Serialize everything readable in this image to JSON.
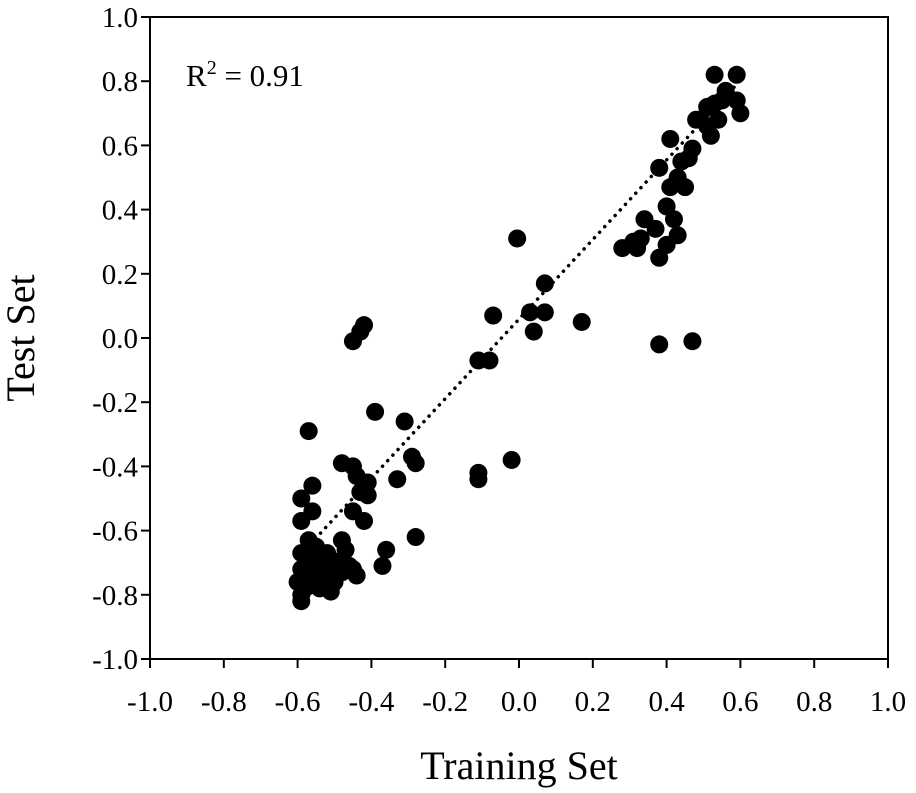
{
  "chart_data": {
    "type": "scatter",
    "title": "",
    "xlabel": "Training Set",
    "ylabel": "Test Set",
    "xlim": [
      -1.0,
      1.0
    ],
    "ylim": [
      -1.0,
      1.0
    ],
    "xticks": [
      "-1.0",
      "-0.8",
      "-0.6",
      "-0.4",
      "-0.2",
      "0.0",
      "0.2",
      "0.4",
      "0.6",
      "0.8",
      "1.0"
    ],
    "yticks": [
      "-1.0",
      "-0.8",
      "-0.6",
      "-0.4",
      "-0.2",
      "0.0",
      "0.2",
      "0.4",
      "0.6",
      "0.8",
      "1.0"
    ],
    "grid": false,
    "legend": "none",
    "annotation": {
      "prefix": "R",
      "sup": "2",
      "suffix": " = 0.91"
    },
    "trendline": {
      "style": "dotted",
      "from": [
        -0.58,
        -0.66
      ],
      "to": [
        0.59,
        0.79
      ]
    },
    "marker_color": "#000000",
    "series": [
      {
        "points": [
          [
            0.53,
            0.82
          ],
          [
            0.59,
            0.82
          ],
          [
            0.56,
            0.77
          ],
          [
            0.51,
            0.72
          ],
          [
            0.53,
            0.73
          ],
          [
            0.55,
            0.74
          ],
          [
            0.59,
            0.74
          ],
          [
            0.49,
            0.68
          ],
          [
            0.51,
            0.66
          ],
          [
            0.54,
            0.68
          ],
          [
            0.6,
            0.7
          ],
          [
            0.52,
            0.63
          ],
          [
            0.48,
            0.68
          ],
          [
            0.41,
            0.62
          ],
          [
            0.47,
            0.59
          ],
          [
            0.46,
            0.56
          ],
          [
            0.44,
            0.55
          ],
          [
            0.38,
            0.53
          ],
          [
            0.43,
            0.5
          ],
          [
            0.41,
            0.47
          ],
          [
            0.45,
            0.47
          ],
          [
            0.4,
            0.41
          ],
          [
            0.42,
            0.37
          ],
          [
            0.34,
            0.37
          ],
          [
            0.37,
            0.34
          ],
          [
            0.43,
            0.32
          ],
          [
            0.33,
            0.31
          ],
          [
            0.31,
            0.3
          ],
          [
            0.28,
            0.28
          ],
          [
            0.32,
            0.28
          ],
          [
            0.4,
            0.29
          ],
          [
            0.38,
            0.25
          ],
          [
            -0.005,
            0.31
          ],
          [
            0.07,
            0.17
          ],
          [
            0.03,
            0.08
          ],
          [
            0.07,
            0.08
          ],
          [
            -0.07,
            0.07
          ],
          [
            0.04,
            0.02
          ],
          [
            0.17,
            0.05
          ],
          [
            0.38,
            -0.02
          ],
          [
            0.47,
            -0.01
          ],
          [
            -0.42,
            0.04
          ],
          [
            -0.43,
            0.02
          ],
          [
            -0.45,
            -0.01
          ],
          [
            -0.11,
            -0.07
          ],
          [
            -0.08,
            -0.07
          ],
          [
            -0.39,
            -0.23
          ],
          [
            -0.31,
            -0.26
          ],
          [
            -0.57,
            -0.29
          ],
          [
            -0.29,
            -0.37
          ],
          [
            -0.28,
            -0.39
          ],
          [
            -0.48,
            -0.39
          ],
          [
            -0.45,
            -0.4
          ],
          [
            -0.02,
            -0.38
          ],
          [
            -0.11,
            -0.42
          ],
          [
            -0.11,
            -0.44
          ],
          [
            -0.33,
            -0.44
          ],
          [
            -0.44,
            -0.43
          ],
          [
            -0.41,
            -0.45
          ],
          [
            -0.43,
            -0.48
          ],
          [
            -0.41,
            -0.49
          ],
          [
            -0.56,
            -0.46
          ],
          [
            -0.59,
            -0.5
          ],
          [
            -0.45,
            -0.54
          ],
          [
            -0.56,
            -0.54
          ],
          [
            -0.42,
            -0.57
          ],
          [
            -0.59,
            -0.57
          ],
          [
            -0.28,
            -0.62
          ],
          [
            -0.48,
            -0.63
          ],
          [
            -0.57,
            -0.63
          ],
          [
            -0.55,
            -0.65
          ],
          [
            -0.36,
            -0.66
          ],
          [
            -0.47,
            -0.66
          ],
          [
            -0.59,
            -0.67
          ],
          [
            -0.52,
            -0.67
          ],
          [
            -0.55,
            -0.68
          ],
          [
            -0.51,
            -0.69
          ],
          [
            -0.48,
            -0.7
          ],
          [
            -0.57,
            -0.7
          ],
          [
            -0.53,
            -0.71
          ],
          [
            -0.46,
            -0.71
          ],
          [
            -0.37,
            -0.71
          ],
          [
            -0.59,
            -0.72
          ],
          [
            -0.57,
            -0.73
          ],
          [
            -0.55,
            -0.74
          ],
          [
            -0.51,
            -0.74
          ],
          [
            -0.44,
            -0.74
          ],
          [
            -0.58,
            -0.75
          ],
          [
            -0.6,
            -0.76
          ],
          [
            -0.56,
            -0.77
          ],
          [
            -0.58,
            -0.78
          ],
          [
            -0.54,
            -0.78
          ],
          [
            -0.51,
            -0.79
          ],
          [
            -0.59,
            -0.8
          ],
          [
            -0.59,
            -0.82
          ],
          [
            -0.48,
            -0.73
          ],
          [
            -0.45,
            -0.72
          ],
          [
            -0.5,
            -0.76
          ]
        ]
      }
    ]
  }
}
